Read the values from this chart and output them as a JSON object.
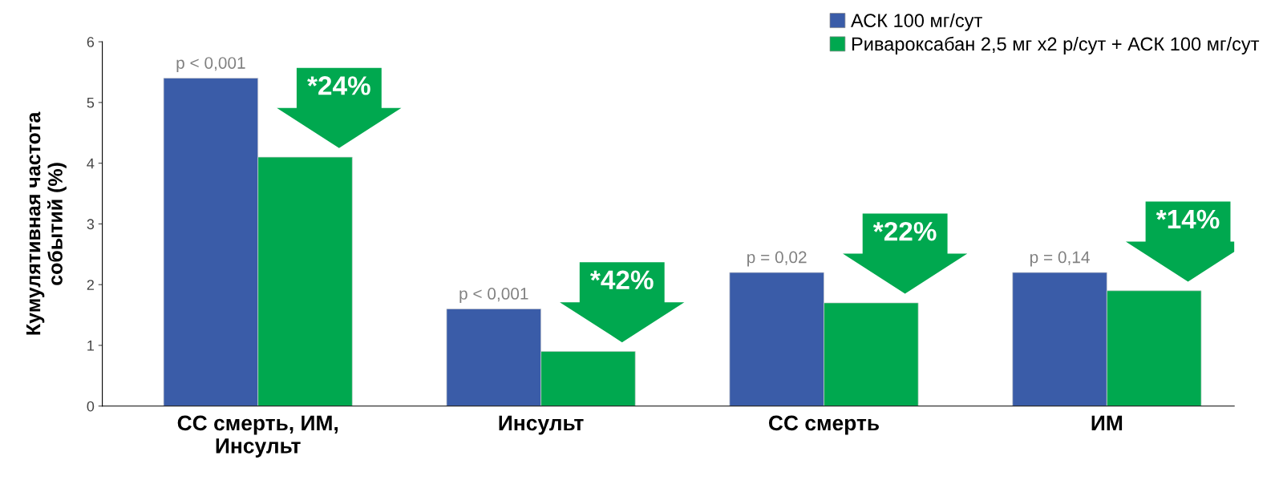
{
  "chart_data": {
    "type": "bar",
    "ylabel": "Кумулятивная частота\nсобытий (%)",
    "categories": [
      "СС смерть, ИМ,\nИнсульт",
      "Инсульт",
      "СС смерть",
      "ИМ"
    ],
    "series": [
      {
        "name": "АСК 100 мг/сут",
        "color": "#3a5ca8",
        "values": [
          5.4,
          1.6,
          2.2,
          2.2
        ]
      },
      {
        "name": "Ривароксабан 2,5 мг x2 р/сут + АСК 100 мг/сут",
        "color": "#00a84f",
        "values": [
          4.1,
          0.9,
          1.7,
          1.9
        ]
      }
    ],
    "ylim": [
      0,
      6
    ],
    "yticks": [
      0,
      1,
      2,
      3,
      4,
      5,
      6
    ],
    "grid": false,
    "legend": "top right",
    "annotations": [
      {
        "text": "p < 0,001",
        "x": "СС смерть, ИМ,\nИнсульт",
        "y": 5.4
      },
      {
        "text": "*24%",
        "x": "СС смерть, ИМ,\nИнсульт",
        "y": 4.1
      },
      {
        "text": "p < 0,001",
        "x": "Инсульт",
        "y": 1.6
      },
      {
        "text": "*42%",
        "x": "Инсульт",
        "y": 0.9
      },
      {
        "text": "p = 0,02",
        "x": "СС смерть",
        "y": 2.2
      },
      {
        "text": "*22%",
        "x": "СС смерть",
        "y": 1.7
      },
      {
        "text": "p = 0,14",
        "x": "ИМ",
        "y": 2.2
      },
      {
        "text": "*14%",
        "x": "ИМ",
        "y": 1.9
      }
    ]
  }
}
